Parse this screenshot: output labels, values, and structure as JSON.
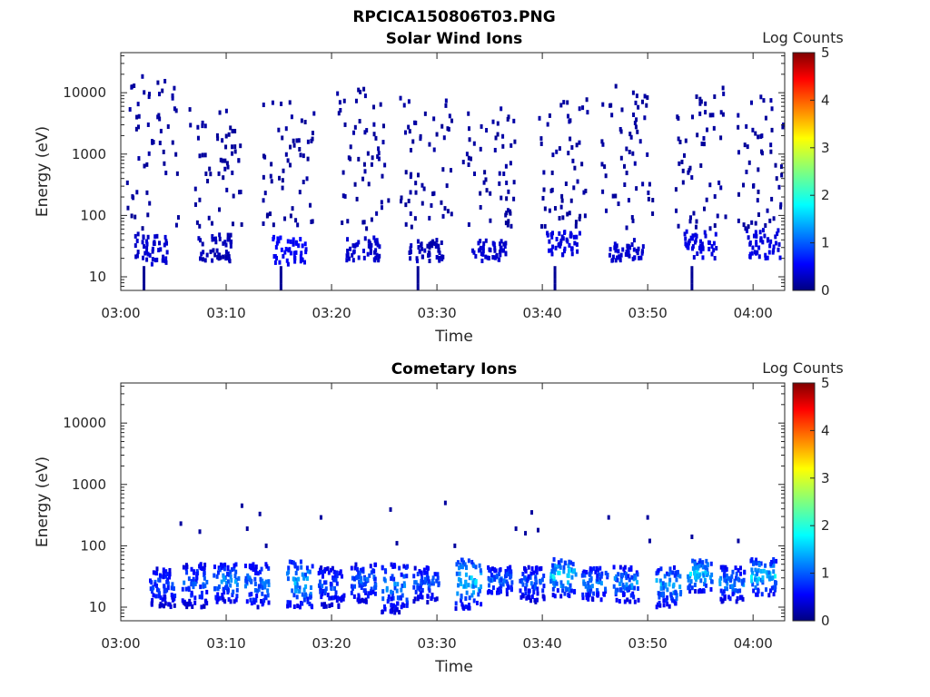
{
  "figure_title": "RPCICA150806T03.PNG",
  "colorbar": {
    "label": "Log Counts",
    "ticks": [
      "0",
      "1",
      "2",
      "3",
      "4",
      "5"
    ],
    "range": [
      0,
      5
    ],
    "colormap": "jet"
  },
  "chart_data": [
    {
      "type": "heatmap",
      "title": "Solar Wind Ions",
      "xlabel": "Time",
      "ylabel": "Energy (eV)",
      "xlim": [
        "03:00",
        "04:03"
      ],
      "ylim": [
        6,
        45000
      ],
      "yscale": "log",
      "xticks": [
        "03:00",
        "03:10",
        "03:20",
        "03:30",
        "03:40",
        "03:50",
        "04:00"
      ],
      "yticks": [
        "10",
        "100",
        "1000",
        "10000"
      ],
      "bursts": [
        {
          "center": "03:03",
          "low_band": [
            16,
            50
          ],
          "low_level": 0.3,
          "scatter_max": 20000
        },
        {
          "center": "03:09",
          "low_band": [
            18,
            50
          ],
          "low_level": 0.2,
          "scatter_max": 5500
        },
        {
          "center": "03:16",
          "low_band": [
            16,
            45
          ],
          "low_level": 0.5,
          "scatter_max": 8000
        },
        {
          "center": "03:23",
          "low_band": [
            18,
            45
          ],
          "low_level": 0.3,
          "scatter_max": 12000
        },
        {
          "center": "03:29",
          "low_band": [
            18,
            40
          ],
          "low_level": 0.2,
          "scatter_max": 9000
        },
        {
          "center": "03:35",
          "low_band": [
            18,
            40
          ],
          "low_level": 0.3,
          "scatter_max": 6000
        },
        {
          "center": "03:42",
          "low_band": [
            22,
            55
          ],
          "low_level": 0.4,
          "scatter_max": 9000
        },
        {
          "center": "03:48",
          "low_band": [
            18,
            40
          ],
          "low_level": 0.3,
          "scatter_max": 13000
        },
        {
          "center": "03:55",
          "low_band": [
            20,
            55
          ],
          "low_level": 0.4,
          "scatter_max": 12000
        },
        {
          "center": "04:01",
          "low_band": [
            20,
            60
          ],
          "low_level": 0.4,
          "scatter_max": 9000
        }
      ]
    },
    {
      "type": "heatmap",
      "title": "Cometary Ions",
      "xlabel": "Time",
      "ylabel": "Energy (eV)",
      "xlim": [
        "03:00",
        "04:03"
      ],
      "ylim": [
        6,
        45000
      ],
      "yscale": "log",
      "xticks": [
        "03:00",
        "03:10",
        "03:20",
        "03:30",
        "03:40",
        "03:50",
        "04:00"
      ],
      "yticks": [
        "10",
        "100",
        "1000",
        "10000"
      ],
      "bursts": [
        {
          "center": "03:04",
          "band": [
            10,
            45
          ],
          "peak": 1.2
        },
        {
          "center": "03:07",
          "band": [
            10,
            50
          ],
          "peak": 1.3
        },
        {
          "center": "03:10",
          "band": [
            12,
            50
          ],
          "peak": 1.6
        },
        {
          "center": "03:13",
          "band": [
            10,
            50
          ],
          "peak": 1.5
        },
        {
          "center": "03:17",
          "band": [
            10,
            55
          ],
          "peak": 1.9
        },
        {
          "center": "03:20",
          "band": [
            10,
            45
          ],
          "peak": 1.2
        },
        {
          "center": "03:23",
          "band": [
            12,
            50
          ],
          "peak": 1.4
        },
        {
          "center": "03:26",
          "band": [
            8,
            50
          ],
          "peak": 1.5
        },
        {
          "center": "03:29",
          "band": [
            12,
            45
          ],
          "peak": 1.3
        },
        {
          "center": "03:33",
          "band": [
            9,
            60
          ],
          "peak": 2.0
        },
        {
          "center": "03:36",
          "band": [
            15,
            45
          ],
          "peak": 1.4
        },
        {
          "center": "03:39",
          "band": [
            12,
            45
          ],
          "peak": 1.3
        },
        {
          "center": "03:42",
          "band": [
            15,
            60
          ],
          "peak": 2.1
        },
        {
          "center": "03:45",
          "band": [
            12,
            45
          ],
          "peak": 1.5
        },
        {
          "center": "03:48",
          "band": [
            12,
            45
          ],
          "peak": 1.6
        },
        {
          "center": "03:52",
          "band": [
            10,
            45
          ],
          "peak": 1.8
        },
        {
          "center": "03:55",
          "band": [
            18,
            60
          ],
          "peak": 2.0
        },
        {
          "center": "03:58",
          "band": [
            12,
            45
          ],
          "peak": 1.6
        },
        {
          "center": "04:01",
          "band": [
            15,
            60
          ],
          "peak": 2.0
        }
      ],
      "isolated_points": [
        {
          "t": "03:05.7",
          "e": 230
        },
        {
          "t": "03:07.5",
          "e": 170
        },
        {
          "t": "03:11.5",
          "e": 450
        },
        {
          "t": "03:12.0",
          "e": 190
        },
        {
          "t": "03:13.2",
          "e": 330
        },
        {
          "t": "03:13.8",
          "e": 100
        },
        {
          "t": "03:19.0",
          "e": 290
        },
        {
          "t": "03:25.6",
          "e": 390
        },
        {
          "t": "03:26.2",
          "e": 110
        },
        {
          "t": "03:30.8",
          "e": 500
        },
        {
          "t": "03:31.7",
          "e": 100
        },
        {
          "t": "03:37.5",
          "e": 190
        },
        {
          "t": "03:38.4",
          "e": 160
        },
        {
          "t": "03:39.0",
          "e": 350
        },
        {
          "t": "03:39.6",
          "e": 180
        },
        {
          "t": "03:46.3",
          "e": 290
        },
        {
          "t": "03:50.0",
          "e": 290
        },
        {
          "t": "03:50.2",
          "e": 120
        },
        {
          "t": "03:54.2",
          "e": 140
        },
        {
          "t": "03:58.6",
          "e": 120
        }
      ]
    }
  ]
}
